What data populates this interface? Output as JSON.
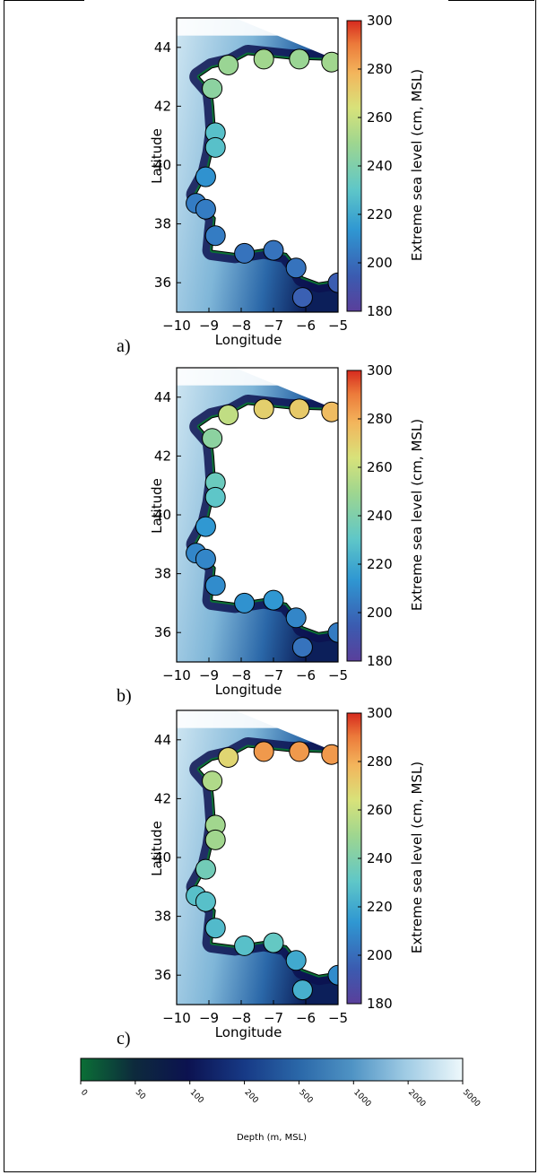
{
  "chart_data": {
    "type": "scatter",
    "description_units": {
      "x": "Longitude",
      "y": "Latitude"
    },
    "xlabel": "Longitude",
    "ylabel": "Latitude",
    "xlim": [
      -10,
      -5
    ],
    "ylim": [
      35,
      45
    ],
    "xticks": [
      "-10",
      "-9",
      "-8",
      "-7",
      "-6",
      "-5"
    ],
    "yticks": [
      "36",
      "38",
      "40",
      "42",
      "44"
    ],
    "colorbar": {
      "label": "Extreme sea level (cm, MSL)",
      "range": [
        180,
        300
      ],
      "ticks": [
        "180",
        "200",
        "220",
        "240",
        "260",
        "280",
        "300"
      ]
    },
    "stations": [
      {
        "lon": -5.0,
        "lat": 36.0
      },
      {
        "lon": -5.2,
        "lat": 43.5
      },
      {
        "lon": -6.2,
        "lat": 43.6
      },
      {
        "lon": -7.3,
        "lat": 43.6
      },
      {
        "lon": -8.4,
        "lat": 43.4
      },
      {
        "lon": -8.9,
        "lat": 42.6
      },
      {
        "lon": -8.8,
        "lat": 41.1
      },
      {
        "lon": -8.8,
        "lat": 40.6
      },
      {
        "lon": -9.1,
        "lat": 39.6
      },
      {
        "lon": -9.4,
        "lat": 38.7
      },
      {
        "lon": -9.1,
        "lat": 38.5
      },
      {
        "lon": -8.8,
        "lat": 37.6
      },
      {
        "lon": -7.9,
        "lat": 37.0
      },
      {
        "lon": -7.0,
        "lat": 37.1
      },
      {
        "lon": -6.3,
        "lat": 36.5
      },
      {
        "lon": -6.1,
        "lat": 35.5
      }
    ],
    "panels": [
      {
        "label": "a)",
        "values": [
          195,
          250,
          248,
          250,
          248,
          244,
          228,
          228,
          212,
          205,
          205,
          205,
          202,
          202,
          202,
          196
        ]
      },
      {
        "label": "b)",
        "values": [
          205,
          276,
          272,
          270,
          258,
          244,
          234,
          230,
          214,
          208,
          208,
          210,
          212,
          214,
          208,
          202
        ]
      },
      {
        "label": "c)",
        "values": [
          210,
          284,
          284,
          284,
          268,
          254,
          250,
          250,
          236,
          228,
          228,
          226,
          228,
          232,
          220,
          222
        ]
      }
    ],
    "depth_colorbar": {
      "label": "Depth (m, MSL)",
      "ticks": [
        "0",
        "50",
        "100",
        "200",
        "500",
        "1000",
        "2000",
        "5000"
      ],
      "colors": [
        "#0b6f36",
        "#0d2a3c",
        "#0c1250",
        "#173a86",
        "#2a67a8",
        "#4f93c4",
        "#9fcbe4",
        "#eef8fb"
      ]
    }
  }
}
